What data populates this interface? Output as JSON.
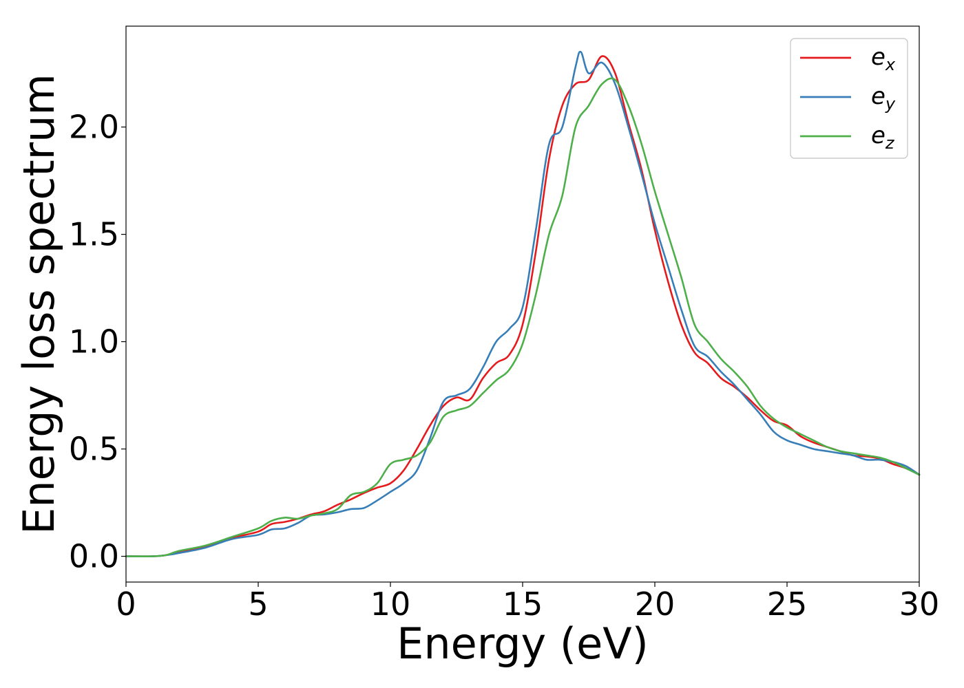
{
  "chart_data": {
    "type": "line",
    "title": "",
    "xlabel": "Energy (eV)",
    "ylabel": "Energy loss spectrum",
    "xlim": [
      0,
      30
    ],
    "ylim": [
      -0.12,
      2.47
    ],
    "xticks": [
      0,
      5,
      10,
      15,
      20,
      25,
      30
    ],
    "xtick_labels": [
      "0",
      "5",
      "10",
      "15",
      "20",
      "25",
      "30"
    ],
    "yticks": [
      0.0,
      0.5,
      1.0,
      1.5,
      2.0
    ],
    "ytick_labels": [
      "0.0",
      "0.5",
      "1.0",
      "1.5",
      "2.0"
    ],
    "grid": false,
    "legend_position": "top-right",
    "series": [
      {
        "name": "e_x",
        "legend_base": "e",
        "legend_sub": "x",
        "color": "#e41a1c",
        "x": [
          0,
          1,
          1.5,
          2,
          3,
          4,
          5,
          5.5,
          6,
          6.5,
          7,
          7.5,
          8,
          8.5,
          9,
          9.5,
          10,
          10.5,
          11,
          11.5,
          12,
          12.5,
          13,
          13.5,
          14,
          14.5,
          15,
          15.5,
          16,
          16.5,
          17,
          17.5,
          18,
          18.5,
          19,
          19.5,
          20,
          20.5,
          21,
          21.5,
          22,
          22.5,
          23,
          23.5,
          24,
          24.5,
          25,
          25.5,
          26,
          26.5,
          27,
          27.5,
          28,
          28.5,
          29,
          29.5,
          30
        ],
        "y": [
          0.0,
          0.0,
          0.005,
          0.02,
          0.045,
          0.085,
          0.115,
          0.15,
          0.16,
          0.175,
          0.195,
          0.21,
          0.24,
          0.265,
          0.295,
          0.32,
          0.34,
          0.4,
          0.5,
          0.61,
          0.7,
          0.74,
          0.73,
          0.83,
          0.9,
          0.94,
          1.08,
          1.42,
          1.85,
          2.1,
          2.2,
          2.22,
          2.33,
          2.25,
          2.02,
          1.8,
          1.52,
          1.28,
          1.08,
          0.95,
          0.9,
          0.83,
          0.79,
          0.74,
          0.68,
          0.63,
          0.61,
          0.56,
          0.53,
          0.51,
          0.49,
          0.47,
          0.465,
          0.455,
          0.43,
          0.41,
          0.38
        ]
      },
      {
        "name": "e_y",
        "legend_base": "e",
        "legend_sub": "y",
        "color": "#377eb8",
        "x": [
          0,
          1,
          1.5,
          2,
          3,
          4,
          5,
          5.5,
          6,
          6.5,
          7,
          7.5,
          8,
          8.5,
          9,
          9.5,
          10,
          10.5,
          11,
          11.5,
          12,
          12.5,
          13,
          13.5,
          14,
          14.5,
          15,
          15.5,
          16,
          16.5,
          17,
          17.2,
          17.5,
          18,
          18.5,
          19,
          19.5,
          20,
          20.5,
          21,
          21.5,
          22,
          22.5,
          23,
          23.5,
          24,
          24.5,
          25,
          25.5,
          26,
          26.5,
          27,
          27.5,
          28,
          28.5,
          29,
          29.5,
          30
        ],
        "y": [
          0.0,
          0.0,
          0.005,
          0.015,
          0.04,
          0.08,
          0.1,
          0.125,
          0.13,
          0.155,
          0.19,
          0.195,
          0.205,
          0.22,
          0.225,
          0.26,
          0.3,
          0.34,
          0.4,
          0.55,
          0.72,
          0.75,
          0.78,
          0.88,
          1.0,
          1.06,
          1.16,
          1.52,
          1.92,
          2.0,
          2.28,
          2.35,
          2.25,
          2.3,
          2.2,
          2.0,
          1.78,
          1.55,
          1.35,
          1.15,
          0.98,
          0.93,
          0.86,
          0.8,
          0.73,
          0.66,
          0.58,
          0.54,
          0.52,
          0.5,
          0.49,
          0.48,
          0.47,
          0.45,
          0.45,
          0.44,
          0.42,
          0.38
        ]
      },
      {
        "name": "e_z",
        "legend_base": "e",
        "legend_sub": "z",
        "color": "#4daf4a",
        "x": [
          0,
          1,
          1.5,
          2,
          3,
          4,
          5,
          5.5,
          6,
          6.5,
          7,
          7.5,
          8,
          8.5,
          9,
          9.5,
          10,
          10.5,
          11,
          11.5,
          12,
          12.5,
          13,
          13.5,
          14,
          14.5,
          15,
          15.5,
          16,
          16.5,
          17,
          17.5,
          18,
          18.5,
          19,
          19.5,
          20,
          20.5,
          21,
          21.5,
          22,
          22.5,
          23,
          23.5,
          24,
          24.5,
          25,
          25.5,
          26,
          26.5,
          27,
          27.5,
          28,
          28.5,
          29,
          29.5,
          30
        ],
        "y": [
          0.0,
          0.0,
          0.005,
          0.025,
          0.05,
          0.09,
          0.13,
          0.165,
          0.18,
          0.175,
          0.19,
          0.2,
          0.22,
          0.285,
          0.3,
          0.34,
          0.43,
          0.45,
          0.47,
          0.53,
          0.65,
          0.68,
          0.7,
          0.76,
          0.82,
          0.87,
          0.99,
          1.22,
          1.5,
          1.68,
          2.0,
          2.1,
          2.2,
          2.22,
          2.1,
          1.92,
          1.7,
          1.5,
          1.3,
          1.08,
          1.0,
          0.92,
          0.86,
          0.79,
          0.7,
          0.64,
          0.6,
          0.57,
          0.54,
          0.51,
          0.49,
          0.48,
          0.47,
          0.46,
          0.44,
          0.41,
          0.38
        ]
      }
    ]
  }
}
